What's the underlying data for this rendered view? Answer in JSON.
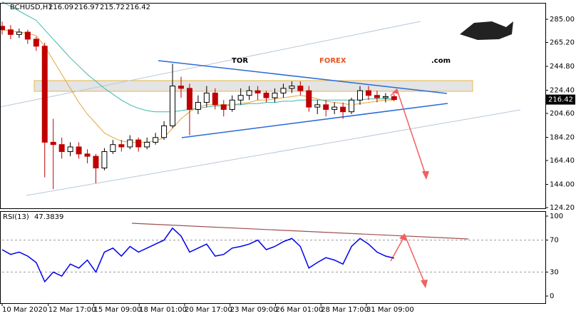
{
  "chart_data": [
    {
      "type": "candlestick",
      "symbol": "BCHUSD,H1",
      "last_bar": {
        "open": 216.09,
        "high": 216.97,
        "low": 215.72,
        "close": 216.42
      },
      "x": [
        0,
        12,
        24,
        36,
        48,
        60,
        72,
        84,
        96,
        108,
        120,
        132,
        144,
        156,
        168,
        180,
        192,
        204,
        216,
        228,
        240,
        252,
        264,
        276,
        288,
        300,
        312,
        324,
        336,
        348,
        360,
        372,
        384,
        396,
        408,
        420,
        432,
        444,
        456,
        468,
        480,
        492,
        504,
        516,
        528,
        540,
        552
      ],
      "open": [
        279,
        276,
        272,
        274,
        268,
        262,
        180,
        178,
        172,
        176,
        170,
        168,
        158,
        172,
        178,
        176,
        182,
        176,
        180,
        184,
        194,
        228,
        226,
        208,
        214,
        222,
        212,
        208,
        216,
        220,
        224,
        222,
        218,
        222,
        226,
        228,
        224,
        210,
        212,
        208,
        210,
        206,
        216,
        224,
        220,
        218,
        219
      ],
      "high": [
        283,
        280,
        277,
        276,
        270,
        265,
        200,
        184,
        180,
        180,
        174,
        170,
        175,
        182,
        182,
        186,
        184,
        184,
        188,
        198,
        247,
        236,
        230,
        220,
        228,
        226,
        216,
        220,
        226,
        228,
        228,
        224,
        226,
        230,
        232,
        232,
        228,
        216,
        216,
        214,
        214,
        218,
        228,
        228,
        224,
        222,
        221
      ],
      "low": [
        272,
        268,
        269,
        264,
        258,
        150,
        140,
        166,
        168,
        166,
        162,
        145,
        156,
        170,
        172,
        174,
        172,
        174,
        178,
        182,
        192,
        218,
        186,
        204,
        210,
        208,
        202,
        206,
        212,
        216,
        216,
        214,
        214,
        218,
        222,
        220,
        206,
        204,
        202,
        204,
        200,
        204,
        212,
        216,
        214,
        214,
        215
      ],
      "close": [
        276,
        272,
        274,
        268,
        262,
        180,
        178,
        172,
        176,
        170,
        168,
        158,
        172,
        178,
        176,
        182,
        176,
        180,
        184,
        194,
        228,
        226,
        208,
        214,
        222,
        212,
        208,
        216,
        220,
        224,
        222,
        218,
        222,
        226,
        228,
        224,
        210,
        212,
        208,
        210,
        206,
        216,
        224,
        220,
        218,
        219,
        216.42
      ],
      "up_color": "#000000",
      "down_color": "#c00000",
      "moving_averages": [
        {
          "color": "#e8a33d",
          "values": [
            276,
            275,
            274,
            273,
            271,
            262,
            250,
            238,
            226,
            214,
            204,
            196,
            188,
            184,
            181,
            180,
            180,
            180,
            181,
            184,
            192,
            200,
            206,
            210,
            212,
            212,
            212,
            212,
            213,
            214,
            216,
            216,
            217,
            218,
            219,
            220,
            219,
            217,
            215,
            214,
            213,
            212,
            213,
            214,
            215,
            216,
            216
          ]
        },
        {
          "color": "#3cb8a8",
          "values": [
            300,
            296,
            292,
            288,
            284,
            276,
            268,
            260,
            252,
            245,
            238,
            232,
            226,
            221,
            216,
            212,
            209,
            207,
            206,
            206,
            206,
            207,
            208,
            209,
            210,
            211,
            211,
            212,
            212,
            213,
            213,
            214,
            214,
            215,
            215,
            216,
            216,
            216,
            216,
            216,
            216,
            216,
            216,
            217,
            217,
            217,
            217
          ]
        }
      ],
      "xlim": [
        -3,
        762
      ],
      "ylim": [
        123.6,
        299.0
      ],
      "yticks": [
        {
          "value": 285,
          "label": "285.00"
        },
        {
          "value": 265.2,
          "label": "265.20"
        },
        {
          "value": 244.8,
          "label": "244.80"
        },
        {
          "value": 224.4,
          "label": "224.40"
        },
        {
          "value": 204.6,
          "label": "204.60"
        },
        {
          "value": 184.2,
          "label": "184.20"
        },
        {
          "value": 164.4,
          "label": "164.40"
        },
        {
          "value": 144,
          "label": "144.00"
        },
        {
          "value": 124.2,
          "label": "124.20"
        }
      ],
      "xticks": [
        {
          "value": 0,
          "label": "10 Mar 2020"
        },
        {
          "value": 65,
          "label": "12 Mar 17:00"
        },
        {
          "value": 129,
          "label": "15 Mar 09:00"
        },
        {
          "value": 193,
          "label": "18 Mar 01:00"
        },
        {
          "value": 257,
          "label": "20 Mar 17:00"
        },
        {
          "value": 321,
          "label": "23 Mar 09:00"
        },
        {
          "value": 385,
          "label": "26 Mar 01:00"
        },
        {
          "value": 449,
          "label": "28 Mar 17:00"
        },
        {
          "value": 513,
          "label": "31 Mar 09:00"
        }
      ],
      "watermark": {
        "part1": "TOR",
        "part2": "FOREX",
        "part3": ".com"
      }
    },
    {
      "type": "line",
      "title": "RSI(13)",
      "color": "#0000ee",
      "x": [
        0,
        12,
        24,
        36,
        48,
        60,
        72,
        84,
        96,
        108,
        120,
        132,
        144,
        156,
        168,
        180,
        192,
        204,
        216,
        228,
        240,
        252,
        264,
        276,
        288,
        300,
        312,
        324,
        336,
        348,
        360,
        372,
        384,
        396,
        408,
        420,
        432,
        444,
        456,
        468,
        480,
        492,
        504,
        516,
        528,
        540,
        552
      ],
      "values": [
        58,
        52,
        55,
        50,
        42,
        18,
        30,
        25,
        40,
        35,
        45,
        30,
        55,
        60,
        50,
        62,
        55,
        60,
        65,
        70,
        85,
        75,
        55,
        60,
        65,
        50,
        52,
        60,
        62,
        65,
        70,
        58,
        62,
        68,
        72,
        62,
        35,
        42,
        48,
        45,
        40,
        62,
        72,
        65,
        55,
        50,
        47.3839
      ],
      "xlim": [
        -3,
        762
      ],
      "ylim": [
        -8.9,
        106.2
      ],
      "yticks": [
        0,
        30,
        70,
        100
      ],
      "levels": [
        30,
        70
      ]
    }
  ]
}
